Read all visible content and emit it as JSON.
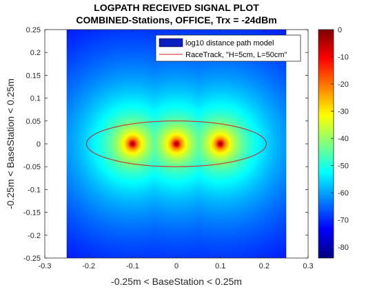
{
  "chart_data": {
    "type": "heatmap",
    "title": "LOGPATH RECEIVED SIGNAL PLOT",
    "subtitle": "COMBINED-Stations, OFFICE, Trx = -24dBm",
    "xlabel": "-0.25m < BaseStation < 0.25m",
    "ylabel": "-0.25m < BaseStation < 0.25m",
    "xlim": [
      -0.3,
      0.3
    ],
    "ylim": [
      -0.25,
      0.25
    ],
    "x_ticks": [
      -0.3,
      -0.2,
      -0.1,
      0,
      0.1,
      0.2,
      0.3
    ],
    "x_tick_labels": [
      "-0.3",
      "-0.2",
      "-0.1",
      "0",
      "0.1",
      "0.2",
      "0.3"
    ],
    "y_ticks": [
      -0.25,
      -0.2,
      -0.15,
      -0.1,
      -0.05,
      0,
      0.05,
      0.1,
      0.15,
      0.2,
      0.25
    ],
    "y_tick_labels": [
      "-0.25",
      "-0.2",
      "-0.15",
      "-0.1",
      "-0.05",
      "0",
      "0.05",
      "0.1",
      "0.15",
      "0.2",
      "0.25"
    ],
    "field_extent": {
      "x": [
        -0.25,
        0.25
      ],
      "y": [
        -0.25,
        0.25
      ]
    },
    "background_color": "#000000",
    "base_stations": [
      {
        "x": -0.1,
        "y": 0
      },
      {
        "x": 0,
        "y": 0
      },
      {
        "x": 0.1,
        "y": 0
      }
    ],
    "coverage_threshold_db": -84,
    "colorbar": {
      "range": [
        -84,
        0
      ],
      "ticks": [
        0,
        -10,
        -20,
        -30,
        -40,
        -50,
        -60,
        -70,
        -80
      ],
      "tick_labels": [
        "0",
        "-10",
        "-20",
        "-30",
        "-40",
        "-50",
        "-60",
        "-70",
        "-80"
      ],
      "colormap": "jet"
    },
    "legend": {
      "placement": "top-right",
      "entries": [
        {
          "label": "log10 distance path model",
          "color": "#0a1fc0",
          "style": "patch"
        },
        {
          "label": "RaceTrack, \"H=5cm, L=50cm\"",
          "color": "#d81b1b",
          "style": "line"
        }
      ]
    },
    "racetrack": {
      "center_x": 0,
      "center_y": 0,
      "half_length": 0.205,
      "half_height": 0.05,
      "color": "#d81b1b"
    },
    "grid": false
  }
}
